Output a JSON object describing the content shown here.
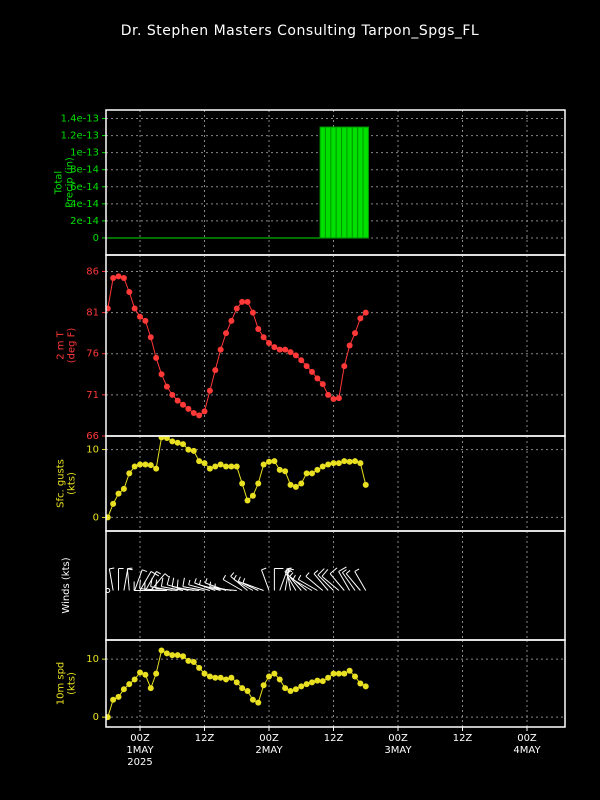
{
  "title": "Dr. Stephen Masters Consulting  Tarpon_Spgs_FL",
  "time_axis": {
    "x": [
      -6,
      -5,
      -4,
      -3,
      -2,
      -1,
      0,
      1,
      2,
      3,
      4,
      5,
      6,
      7,
      8,
      9,
      10,
      11,
      12,
      13,
      14,
      15,
      16,
      17,
      18,
      19,
      20,
      21,
      22,
      23,
      24,
      25,
      26,
      27,
      28,
      29,
      30,
      31,
      32,
      33,
      34,
      35,
      36,
      37,
      38,
      39,
      40,
      41,
      42
    ],
    "xlim": [
      -6.33,
      79.07
    ],
    "xticks": [
      {
        "value": 0,
        "label": "00Z"
      },
      {
        "value": 12,
        "label": "12Z"
      },
      {
        "value": 24,
        "label": "00Z"
      },
      {
        "value": 36,
        "label": "12Z"
      },
      {
        "value": 48,
        "label": "00Z"
      },
      {
        "value": 60,
        "label": "12Z"
      },
      {
        "value": 72,
        "label": "00Z"
      }
    ],
    "date_labels": [
      {
        "value": 0,
        "label": "1MAY"
      },
      {
        "value": 24,
        "label": "2MAY"
      },
      {
        "value": 48,
        "label": "3MAY"
      },
      {
        "value": 72,
        "label": "4MAY"
      }
    ],
    "year_label": {
      "value": 0,
      "label": "2025"
    },
    "grid": true
  },
  "chart_data": [
    {
      "type": "bar",
      "ylabel": [
        "Total",
        "Precip (in)"
      ],
      "color": "#00e000",
      "ylim": [
        -2e-14,
        1.5e-13
      ],
      "yticks": [
        0,
        2e-14,
        4e-14,
        6e-14,
        8e-14,
        1e-13,
        1.2e-13,
        1.4e-13
      ],
      "grid": true,
      "values": [
        0,
        0,
        0,
        0,
        0,
        0,
        0,
        0,
        0,
        0,
        0,
        0,
        0,
        0,
        0,
        0,
        0,
        0,
        0,
        0,
        0,
        0,
        0,
        0,
        0,
        0,
        0,
        0,
        0,
        0,
        0,
        0,
        0,
        0,
        0,
        0,
        0,
        0,
        0,
        0,
        1.3e-13,
        1.3e-13,
        1.3e-13,
        1.3e-13,
        1.3e-13,
        1.3e-13,
        1.3e-13,
        1.3e-13,
        1.3e-13
      ]
    },
    {
      "type": "line",
      "ylabel": [
        "2 m T",
        "(deg F)"
      ],
      "color": "#ff3838",
      "ylim": [
        66,
        88
      ],
      "yticks": [
        66,
        71,
        76,
        81,
        86
      ],
      "grid": true,
      "values": [
        81.5,
        85.2,
        85.4,
        85.2,
        83.5,
        81.5,
        80.5,
        80.0,
        78.0,
        75.5,
        73.5,
        72.0,
        71.0,
        70.3,
        69.8,
        69.3,
        68.8,
        68.5,
        69.0,
        71.5,
        74.0,
        76.5,
        78.5,
        80.0,
        81.5,
        82.3,
        82.3,
        81.0,
        79.0,
        78.0,
        77.3,
        76.8,
        76.5,
        76.5,
        76.2,
        75.8,
        75.2,
        74.5,
        73.8,
        73.0,
        72.3,
        71.0,
        70.5,
        70.6,
        74.5,
        77.0,
        78.5,
        80.3,
        81.0
      ]
    },
    {
      "type": "line",
      "ylabel": [
        "Sfc. gusts",
        "(kts)"
      ],
      "color": "#e8e020",
      "ylim": [
        -2,
        12
      ],
      "yticks": [
        0,
        10
      ],
      "grid": true,
      "values": [
        0,
        2,
        3.5,
        4.2,
        6.5,
        7.5,
        7.8,
        7.8,
        7.7,
        7.2,
        11.8,
        11.7,
        11.2,
        11,
        10.8,
        10,
        9.8,
        8.3,
        8,
        7.2,
        7.5,
        7.8,
        7.5,
        7.5,
        7.5,
        5,
        2.5,
        3.2,
        5,
        7.8,
        8.2,
        8.3,
        7,
        6.8,
        4.8,
        4.5,
        5,
        6.5,
        6.5,
        7,
        7.5,
        7.8,
        8,
        8,
        8.3,
        8.2,
        8.3,
        8,
        4.8
      ]
    },
    {
      "type": "barbs",
      "ylabel": [
        "Winds (kts)"
      ],
      "color": "#ffffff",
      "direction": [
        null,
        350,
        0,
        10,
        355,
        20,
        30,
        30,
        40,
        270,
        275,
        270,
        280,
        275,
        280,
        285,
        280,
        275,
        280,
        285,
        290,
        285,
        290,
        280,
        275,
        300,
        310,
        300,
        295,
        290,
        340,
        0,
        20,
        10,
        350,
        330,
        320,
        310,
        300,
        300,
        310,
        320,
        315,
        310,
        320,
        330,
        325,
        320,
        330
      ]
    },
    {
      "type": "line",
      "ylabel": [
        "10m spd",
        "(kts)"
      ],
      "color": "#e8e020",
      "ylim": [
        -1.7,
        13.3
      ],
      "yticks": [
        0,
        10
      ],
      "grid": true,
      "values": [
        0,
        3,
        3.5,
        4.8,
        5.7,
        6.5,
        7.7,
        7.3,
        5,
        7.5,
        11.5,
        11,
        10.7,
        10.7,
        10.5,
        9.7,
        9.5,
        8.5,
        7.5,
        7,
        6.8,
        6.8,
        6.5,
        6.8,
        6,
        5,
        4.5,
        3,
        2.5,
        5.5,
        7,
        7.5,
        6.5,
        5,
        4.5,
        4.8,
        5.3,
        5.7,
        6,
        6.3,
        6.2,
        6.8,
        7.5,
        7.5,
        7.5,
        8,
        7,
        5.8,
        5.3
      ]
    }
  ]
}
